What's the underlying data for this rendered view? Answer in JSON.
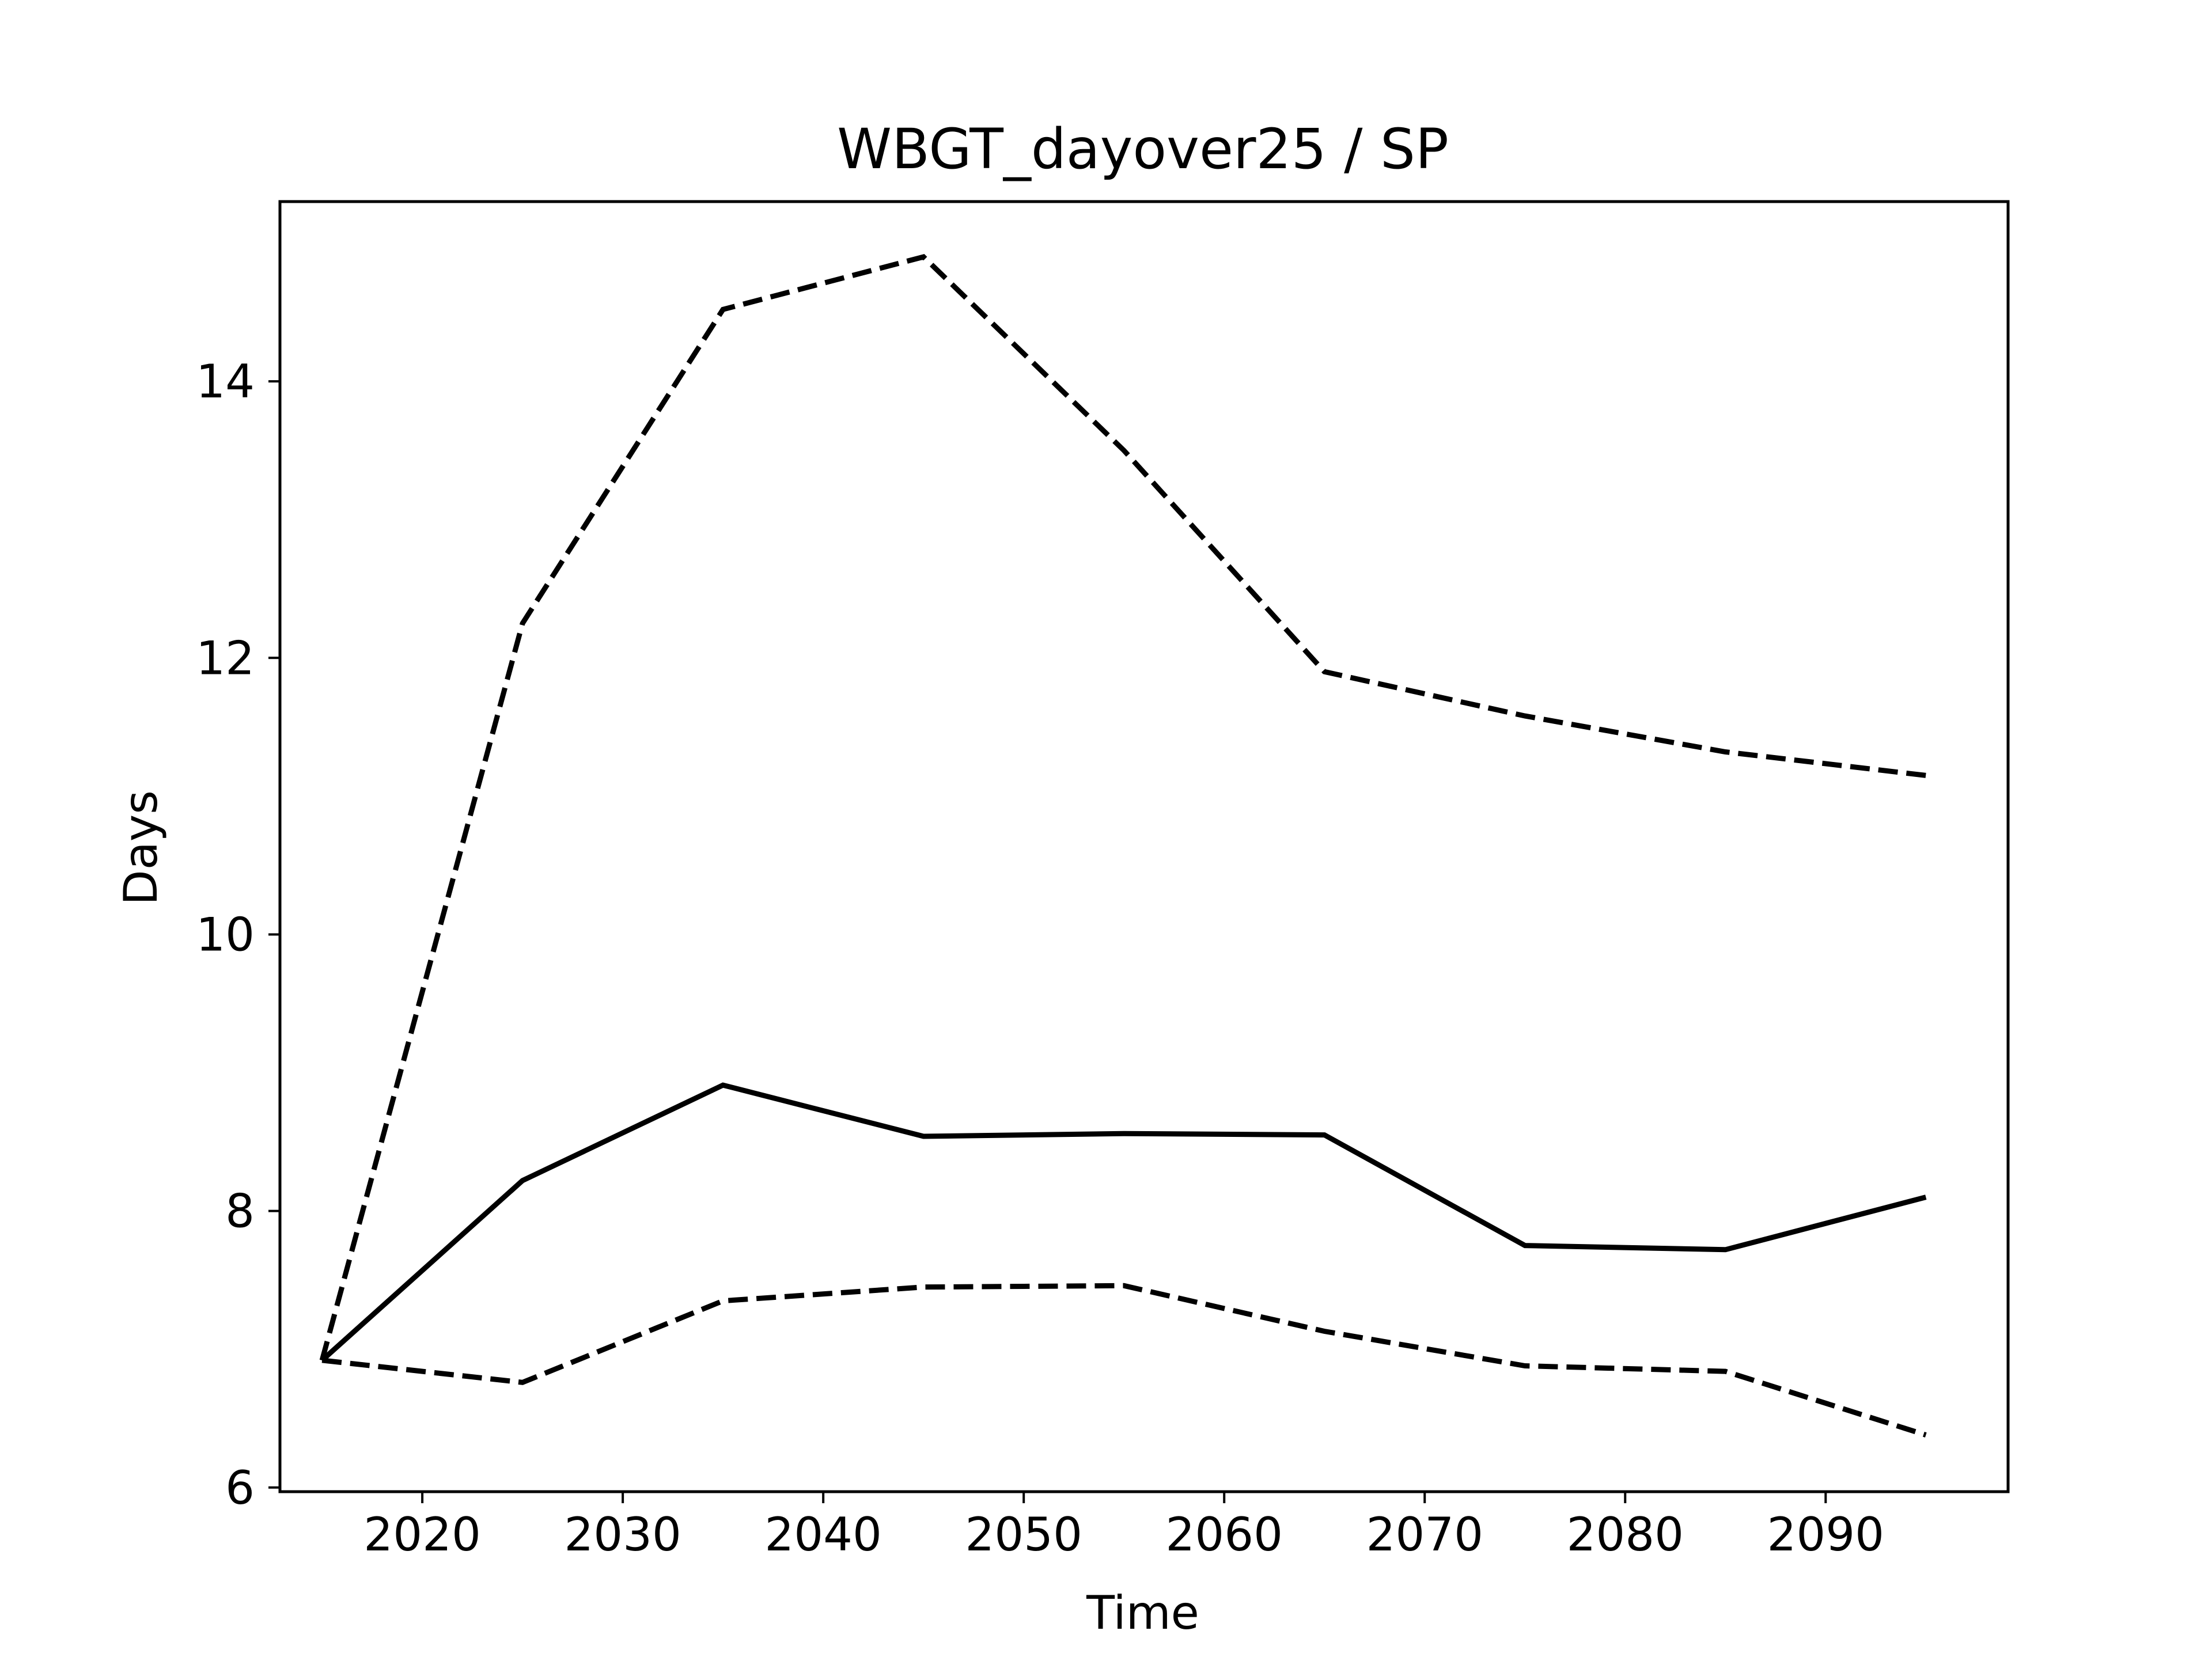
{
  "chart_data": {
    "type": "line",
    "title": "WBGT_dayover25 / SP",
    "xlabel": "Time",
    "ylabel": "Days",
    "x": [
      2015,
      2025,
      2035,
      2045,
      2055,
      2065,
      2075,
      2085,
      2095
    ],
    "xlim": [
      2012.9,
      2099.1
    ],
    "ylim": [
      5.97,
      15.3
    ],
    "xticks": [
      2020,
      2030,
      2040,
      2050,
      2060,
      2070,
      2080,
      2090
    ],
    "yticks": [
      6,
      8,
      10,
      12,
      14
    ],
    "grid": false,
    "legend": "none",
    "series": [
      {
        "style": "solid",
        "color": "#000000",
        "values": [
          6.92,
          8.22,
          8.91,
          8.54,
          8.56,
          8.55,
          7.75,
          7.72,
          8.1
        ]
      },
      {
        "style": "dashed",
        "color": "#000000",
        "values": [
          6.92,
          12.25,
          14.52,
          14.9,
          13.5,
          11.9,
          11.58,
          11.32,
          11.15
        ]
      },
      {
        "style": "dashed",
        "color": "#000000",
        "values": [
          6.92,
          6.76,
          7.35,
          7.45,
          7.46,
          7.13,
          6.88,
          6.84,
          6.38
        ]
      }
    ]
  }
}
